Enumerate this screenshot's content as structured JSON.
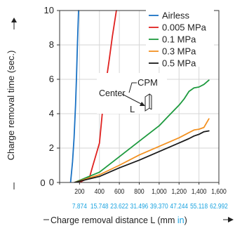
{
  "chart_data": {
    "type": "line",
    "title": "",
    "xlabel_prefix": "Charge removal distance L (mm ",
    "xlabel_unit": "in",
    "xlabel_suffix": ")",
    "ylabel": "Charge removal time (sec.)",
    "xlim": [
      0,
      1600
    ],
    "ylim": [
      0,
      10
    ],
    "x_ticks": [
      0,
      200,
      400,
      600,
      800,
      1000,
      1200,
      1400,
      1600
    ],
    "x_tick_labels": [
      "0",
      "200",
      "400",
      "600",
      "800",
      "1,000",
      "1,200",
      "1,400",
      "1,600"
    ],
    "x_tick_labels_in": [
      "7.874",
      "15.748",
      "23.622",
      "31.496",
      "39.370",
      "47.244",
      "55.118",
      "62.992"
    ],
    "x_tick_positions_in": [
      200,
      400,
      600,
      800,
      1000,
      1200,
      1400,
      1600
    ],
    "y_ticks": [
      0,
      2,
      4,
      6,
      8,
      10
    ],
    "y_tick_labels": [
      "0",
      "2",
      "4",
      "6",
      "8",
      "10"
    ],
    "grid": true,
    "legend_position": "top-right",
    "series": [
      {
        "name": "Airless",
        "color": "#1a72c4",
        "x": [
          110,
          130,
          145,
          160,
          170,
          180,
          190
        ],
        "y": [
          0,
          1.2,
          2.6,
          4.5,
          6.2,
          8.2,
          10
        ]
      },
      {
        "name": "0.005 MPa",
        "color": "#e0211f",
        "x": [
          200,
          300,
          330,
          360,
          400,
          420,
          440,
          470,
          500,
          530,
          570
        ],
        "y": [
          0,
          0.3,
          0.9,
          1.5,
          2.3,
          3.5,
          4.7,
          6.0,
          7.2,
          8.5,
          10
        ]
      },
      {
        "name": "0.1 MPa",
        "color": "#1d9a3e",
        "x": [
          150,
          400,
          600,
          800,
          1000,
          1100,
          1200,
          1250,
          1300,
          1350,
          1400,
          1450,
          1500
        ],
        "y": [
          0,
          0.6,
          1.5,
          2.4,
          3.3,
          3.9,
          4.5,
          4.85,
          5.3,
          5.5,
          5.55,
          5.7,
          5.95
        ]
      },
      {
        "name": "0.3 MPa",
        "color": "#f39222",
        "x": [
          150,
          400,
          600,
          800,
          1000,
          1100,
          1200,
          1300,
          1350,
          1400,
          1450,
          1500
        ],
        "y": [
          0,
          0.45,
          1.0,
          1.6,
          2.1,
          2.35,
          2.6,
          2.9,
          3.05,
          3.1,
          3.2,
          3.7
        ]
      },
      {
        "name": "0.5 MPa",
        "color": "#1a1a1a",
        "x": [
          150,
          400,
          600,
          800,
          1000,
          1100,
          1200,
          1300,
          1350,
          1400,
          1450,
          1500
        ],
        "y": [
          0,
          0.35,
          0.85,
          1.3,
          1.8,
          2.05,
          2.3,
          2.55,
          2.7,
          2.8,
          2.95,
          3.0
        ]
      }
    ],
    "inset": {
      "cpm_label": "CPM",
      "center_label": "Center",
      "distance_label": "L"
    }
  }
}
